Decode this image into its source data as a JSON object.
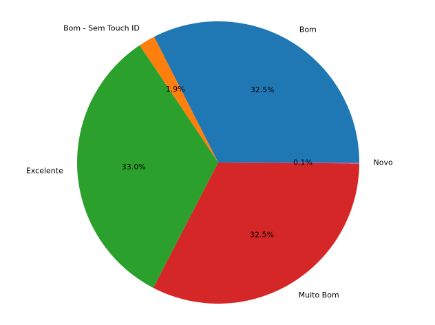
{
  "chart_data": {
    "type": "pie",
    "title": "",
    "start_angle_deg": 0,
    "direction": "counterclockwise",
    "slices": [
      {
        "label": "Bom",
        "value": 32.5,
        "pct_label": "32.5%",
        "color": "#1f77b4"
      },
      {
        "label": "Bom - Sem Touch ID",
        "value": 1.9,
        "pct_label": "1.9%",
        "color": "#ff7f0e"
      },
      {
        "label": "Excelente",
        "value": 33.0,
        "pct_label": "33.0%",
        "color": "#2ca02c"
      },
      {
        "label": "Muito Bom",
        "value": 32.5,
        "pct_label": "32.5%",
        "color": "#d62728"
      },
      {
        "label": "Novo",
        "value": 0.1,
        "pct_label": "0.1%",
        "color": "#9467bd"
      }
    ]
  }
}
